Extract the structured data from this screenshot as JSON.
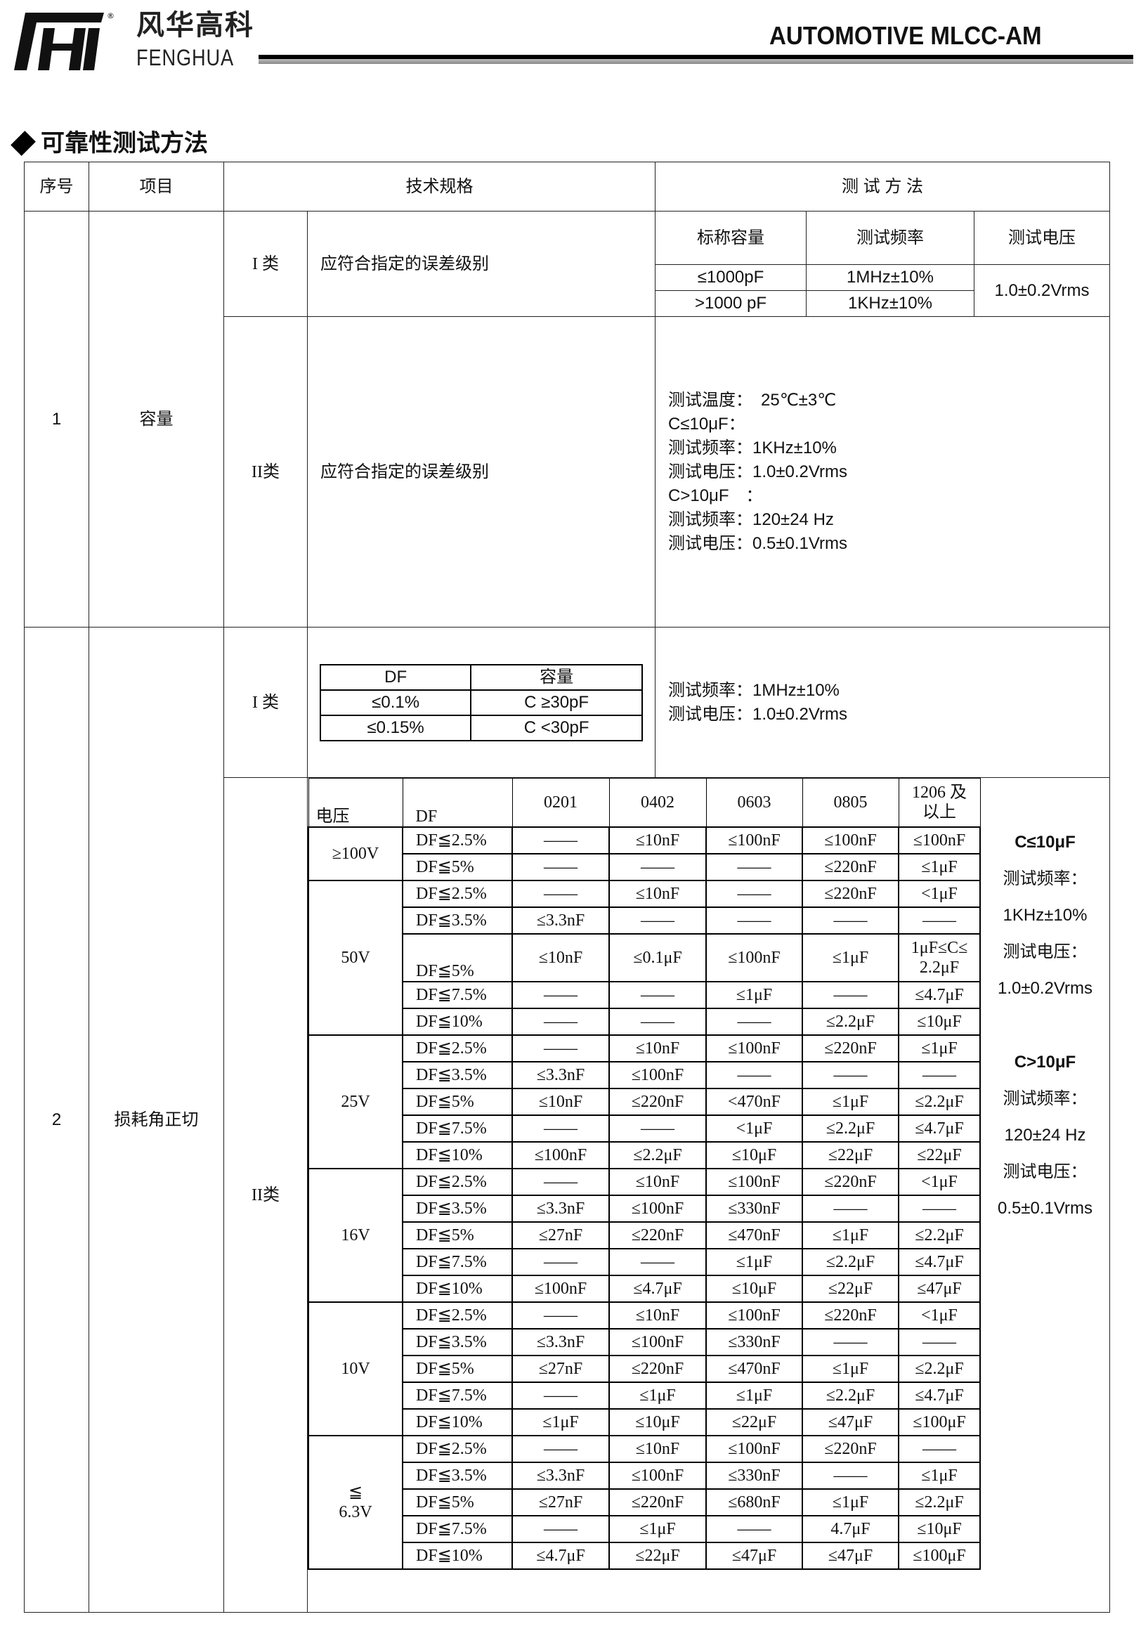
{
  "logo": {
    "cn": "风华高科",
    "en": "FENGHUA",
    "mark": "®"
  },
  "header": {
    "title": "AUTOMOTIVE MLCC-AM"
  },
  "section": {
    "title": "可靠性测试方法"
  },
  "table": {
    "headers": {
      "no": "序号",
      "item": "项目",
      "spec": "技术规格",
      "method": "测 试 方 法"
    },
    "capacitance": {
      "no": "1",
      "item": "容量",
      "class1": {
        "label": "I 类",
        "spec": "应符合指定的误差级别",
        "method_headers": [
          "标称容量",
          "测试频率",
          "测试电压"
        ],
        "rows": [
          {
            "cap": "≤1000pF",
            "freq": "1MHz±10%"
          },
          {
            "cap": ">1000 pF",
            "freq": "1KHz±10%"
          }
        ],
        "voltage": "1.0±0.2Vrms"
      },
      "class2": {
        "label": "II类",
        "spec": "应符合指定的误差级别",
        "method_lines": [
          "测试温度：　25℃±3℃",
          "C≤10μF：",
          "测试频率：1KHz±10%",
          "测试电压：1.0±0.2Vrms",
          "C>10μF　：",
          "测试频率：120±24 Hz",
          "测试电压：0.5±0.1Vrms"
        ]
      }
    },
    "df": {
      "no": "2",
      "item": "损耗角正切",
      "class1": {
        "label": "I 类",
        "headers": [
          "DF",
          "容量"
        ],
        "rows": [
          [
            "≤0.1%",
            "C ≥30pF"
          ],
          [
            "≤0.15%",
            "C <30pF"
          ]
        ],
        "method_lines": [
          "测试频率：1MHz±10%",
          "测试电压：1.0±0.2Vrms"
        ]
      },
      "class2": {
        "label": "II类",
        "col_headers": {
          "voltage": "电压",
          "df": "DF",
          "sizes": [
            "0201",
            "0402",
            "0603",
            "0805",
            "1206 及\n以上"
          ]
        },
        "groups": [
          {
            "voltage": "≥100V",
            "rows": [
              {
                "df": "DF≦2.5%",
                "values": [
                  "——",
                  "≤10nF",
                  "≤100nF",
                  "≤100nF",
                  "≤100nF"
                ]
              },
              {
                "df": "DF≦5%",
                "values": [
                  "——",
                  "——",
                  "——",
                  "≤220nF",
                  "≤1μF"
                ]
              }
            ]
          },
          {
            "voltage": "50V",
            "rows": [
              {
                "df": "DF≦2.5%",
                "values": [
                  "——",
                  "≤10nF",
                  "——",
                  "≤220nF",
                  "<1μF"
                ]
              },
              {
                "df": "DF≦3.5%",
                "values": [
                  "≤3.3nF",
                  "——",
                  "——",
                  "——",
                  "——"
                ]
              },
              {
                "df": "DF≦5%",
                "values": [
                  "≤10nF",
                  "≤0.1μF",
                  "≤100nF",
                  "≤1μF",
                  "1μF≤C≤\n2.2μF"
                ]
              },
              {
                "df": "DF≦7.5%",
                "values": [
                  "——",
                  "——",
                  "≤1μF",
                  "——",
                  "≤4.7μF"
                ]
              },
              {
                "df": "DF≦10%",
                "values": [
                  "——",
                  "——",
                  "——",
                  "≤2.2μF",
                  "≤10μF"
                ]
              }
            ]
          },
          {
            "voltage": "25V",
            "rows": [
              {
                "df": "DF≦2.5%",
                "values": [
                  "——",
                  "≤10nF",
                  "≤100nF",
                  "≤220nF",
                  "≤1μF"
                ]
              },
              {
                "df": "DF≦3.5%",
                "values": [
                  "≤3.3nF",
                  "≤100nF",
                  "——",
                  "——",
                  "——"
                ]
              },
              {
                "df": "DF≦5%",
                "values": [
                  "≤10nF",
                  "≤220nF",
                  "<470nF",
                  "≤1μF",
                  "≤2.2μF"
                ]
              },
              {
                "df": "DF≦7.5%",
                "values": [
                  "——",
                  "——",
                  "<1μF",
                  "≤2.2μF",
                  "≤4.7μF"
                ]
              },
              {
                "df": "DF≦10%",
                "values": [
                  "≤100nF",
                  "≤2.2μF",
                  "≤10μF",
                  "≤22μF",
                  "≤22μF"
                ]
              }
            ]
          },
          {
            "voltage": "16V",
            "rows": [
              {
                "df": "DF≦2.5%",
                "values": [
                  "——",
                  "≤10nF",
                  "≤100nF",
                  "≤220nF",
                  "<1μF"
                ]
              },
              {
                "df": "DF≦3.5%",
                "values": [
                  "≤3.3nF",
                  "≤100nF",
                  "≤330nF",
                  "——",
                  "——"
                ]
              },
              {
                "df": "DF≦5%",
                "values": [
                  "≤27nF",
                  "≤220nF",
                  "≤470nF",
                  "≤1μF",
                  "≤2.2μF"
                ]
              },
              {
                "df": "DF≦7.5%",
                "values": [
                  "——",
                  "——",
                  "≤1μF",
                  "≤2.2μF",
                  "≤4.7μF"
                ]
              },
              {
                "df": "DF≦10%",
                "values": [
                  "≤100nF",
                  "≤4.7μF",
                  "≤10μF",
                  "≤22μF",
                  "≤47μF"
                ]
              }
            ]
          },
          {
            "voltage": "10V",
            "rows": [
              {
                "df": "DF≦2.5%",
                "values": [
                  "——",
                  "≤10nF",
                  "≤100nF",
                  "≤220nF",
                  "<1μF"
                ]
              },
              {
                "df": "DF≦3.5%",
                "values": [
                  "≤3.3nF",
                  "≤100nF",
                  "≤330nF",
                  "——",
                  "——"
                ]
              },
              {
                "df": "DF≦5%",
                "values": [
                  "≤27nF",
                  "≤220nF",
                  "≤470nF",
                  "≤1μF",
                  "≤2.2μF"
                ]
              },
              {
                "df": "DF≦7.5%",
                "values": [
                  "——",
                  "≤1μF",
                  "≤1μF",
                  "≤2.2μF",
                  "≤4.7μF"
                ]
              },
              {
                "df": "DF≦10%",
                "values": [
                  "≤1μF",
                  "≤10μF",
                  "≤22μF",
                  "≤47μF",
                  "≤100μF"
                ]
              }
            ]
          },
          {
            "voltage": "≦\n6.3V",
            "rows": [
              {
                "df": "DF≦2.5%",
                "values": [
                  "——",
                  "≤10nF",
                  "≤100nF",
                  "≤220nF",
                  "——"
                ]
              },
              {
                "df": "DF≦3.5%",
                "values": [
                  "≤3.3nF",
                  "≤100nF",
                  "≤330nF",
                  "——",
                  "≤1μF"
                ]
              },
              {
                "df": "DF≦5%",
                "values": [
                  "≤27nF",
                  "≤220nF",
                  "≤680nF",
                  "≤1μF",
                  "≤2.2μF"
                ]
              },
              {
                "df": "DF≦7.5%",
                "values": [
                  "——",
                  "≤1μF",
                  "——",
                  "4.7μF",
                  "≤10μF"
                ]
              },
              {
                "df": "DF≦10%",
                "values": [
                  "≤4.7μF",
                  "≤22μF",
                  "≤47μF",
                  "≤47μF",
                  "≤100μF"
                ]
              }
            ]
          }
        ],
        "method_small": {
          "heading": "C≤10μF",
          "lines": [
            "测试频率：",
            "1KHz±10%",
            "测试电压：",
            "1.0±0.2Vrms"
          ]
        },
        "method_large": {
          "heading": "C>10μF",
          "lines": [
            "测试频率：",
            "120±24 Hz",
            "测试电压：",
            "0.5±0.1Vrms"
          ]
        }
      }
    }
  }
}
